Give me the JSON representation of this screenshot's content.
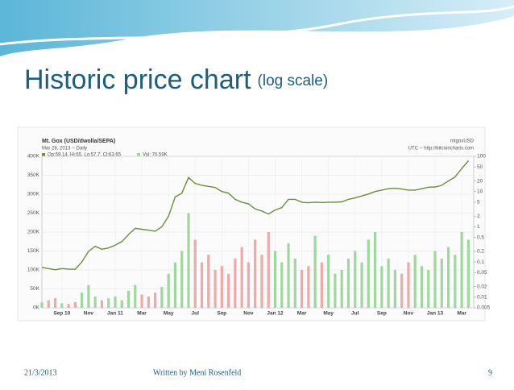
{
  "slide": {
    "title": "Historic price chart",
    "subtitle": "(log scale)",
    "footer_date": "21/3/2013",
    "footer_author": "Written by Meni Rosenfeld",
    "page_number": "9"
  },
  "chart_data": {
    "type": "line",
    "header": {
      "market": "Mt. Gox (USD/dwolla/SEPA)",
      "date": "Mar 28, 2013 -- Daily",
      "ohlc": "Op:59.14, Hi:65, Lo:57.7, Cl:63.65",
      "volume": "Vol: 70.59K",
      "symbol": "mtgoxUSD",
      "source": "UTC -- http://bitcoincharts.com"
    },
    "x": [
      0.5,
      1,
      1.5,
      2,
      2.5,
      3,
      3.5,
      4,
      4.5,
      5,
      5.5,
      6,
      6.5,
      7,
      7.5,
      8,
      8.5,
      9,
      9.5,
      10,
      10.5,
      11,
      11.5,
      12,
      12.5,
      13,
      13.5,
      14,
      14.5,
      15,
      15.5,
      16,
      16.5,
      17,
      17.5,
      18,
      18.5,
      19,
      19.5,
      20,
      20.5,
      21,
      21.5,
      22,
      22.5,
      23,
      23.5,
      24,
      24.5,
      25,
      25.5,
      26,
      26.5,
      27,
      27.5,
      28,
      28.5,
      29,
      29.5,
      30,
      30.5,
      31,
      31.5,
      32,
      32.5
    ],
    "xlim": [
      0.5,
      32.9
    ],
    "xticks": [
      {
        "value": 2,
        "label": "Sep 10"
      },
      {
        "value": 4,
        "label": "Nov"
      },
      {
        "value": 6,
        "label": "Jan 11"
      },
      {
        "value": 8,
        "label": "Mar"
      },
      {
        "value": 10,
        "label": "May"
      },
      {
        "value": 12,
        "label": "Jul"
      },
      {
        "value": 14,
        "label": "Sep"
      },
      {
        "value": 16,
        "label": "Nov"
      },
      {
        "value": 18,
        "label": "Jan 12"
      },
      {
        "value": 20,
        "label": "Mar"
      },
      {
        "value": 22,
        "label": "May"
      },
      {
        "value": 24,
        "label": "Jul"
      },
      {
        "value": 26,
        "label": "Sep"
      },
      {
        "value": 28,
        "label": "Nov"
      },
      {
        "value": 30,
        "label": "Jan 13"
      },
      {
        "value": 32,
        "label": "Mar"
      }
    ],
    "ylim": [
      0,
      400000
    ],
    "yticks": [
      {
        "value": 0,
        "label": "0K"
      },
      {
        "value": 50000,
        "label": "50K"
      },
      {
        "value": 100000,
        "label": "100K"
      },
      {
        "value": 150000,
        "label": "150K"
      },
      {
        "value": 200000,
        "label": "200K"
      },
      {
        "value": 250000,
        "label": "250K"
      },
      {
        "value": 300000,
        "label": "300K"
      },
      {
        "value": 350000,
        "label": "350K"
      },
      {
        "value": 400000,
        "label": "400K"
      }
    ],
    "y2lim": [
      0.005,
      100
    ],
    "y2log": true,
    "y2ticks": [
      100,
      50,
      20,
      10,
      5,
      2,
      1,
      0.5,
      0.2,
      0.1,
      0.05,
      0.02,
      0.01,
      0.005
    ],
    "grid": true,
    "series": [
      {
        "axis": "y2",
        "color": "#6b8e3d",
        "values": [
          0.07,
          0.065,
          0.06,
          0.065,
          0.063,
          0.062,
          0.1,
          0.2,
          0.28,
          0.23,
          0.25,
          0.3,
          0.38,
          0.6,
          0.9,
          0.85,
          0.8,
          0.75,
          1.0,
          2,
          7,
          9,
          25,
          17,
          15,
          14,
          13,
          10,
          9,
          6,
          5,
          4.5,
          3.2,
          2.8,
          2.3,
          3,
          3.5,
          6,
          6,
          5,
          4.8,
          5,
          4.9,
          5,
          5,
          5.1,
          6,
          6.6,
          7.5,
          8.5,
          10,
          11,
          12,
          12.4,
          11.8,
          11,
          11,
          12,
          13.3,
          13.5,
          15,
          20,
          26,
          45,
          75
        ]
      },
      {
        "type": "bar",
        "axis": "y",
        "up_color": "#9ed89e",
        "down_color": "#f0a8a8",
        "values": [
          15000,
          20000,
          25000,
          12000,
          10000,
          15000,
          40000,
          60000,
          30000,
          20000,
          25000,
          30000,
          20000,
          45000,
          60000,
          35000,
          30000,
          40000,
          55000,
          90000,
          120000,
          150000,
          250000,
          180000,
          120000,
          140000,
          100000,
          110000,
          90000,
          130000,
          160000,
          120000,
          180000,
          140000,
          200000,
          150000,
          120000,
          170000,
          130000,
          100000,
          110000,
          190000,
          120000,
          140000,
          90000,
          100000,
          130000,
          150000,
          120000,
          180000,
          200000,
          110000,
          130000,
          100000,
          90000,
          120000,
          140000,
          110000,
          100000,
          150000,
          130000,
          160000,
          140000,
          200000,
          180000
        ]
      }
    ]
  }
}
